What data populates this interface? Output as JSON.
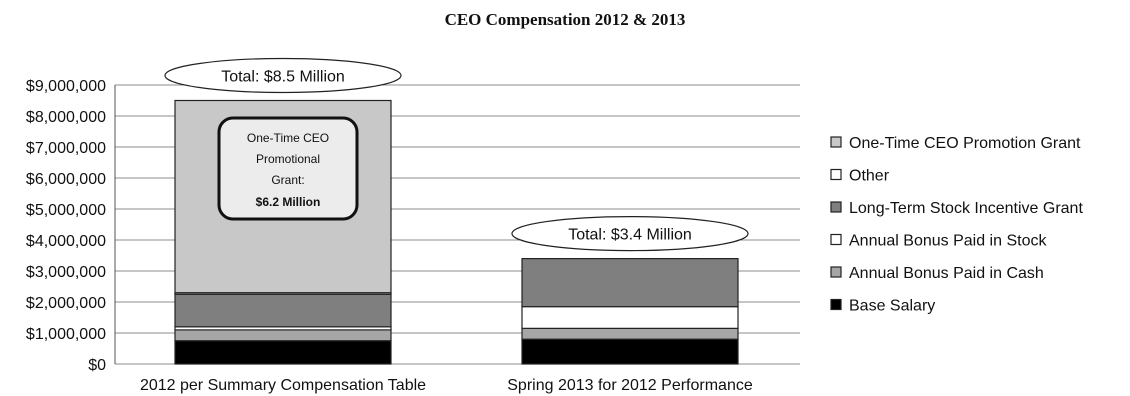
{
  "chart_data": {
    "type": "bar",
    "stacked": true,
    "title": "CEO Compensation 2012 & 2013",
    "xlabel": "",
    "ylabel": "",
    "ylim": [
      0,
      9000000
    ],
    "y_ticks": [
      0,
      1000000,
      2000000,
      3000000,
      4000000,
      5000000,
      6000000,
      7000000,
      8000000,
      9000000
    ],
    "y_tick_labels": [
      "$0",
      "$1,000,000",
      "$2,000,000",
      "$3,000,000",
      "$4,000,000",
      "$5,000,000",
      "$6,000,000",
      "$7,000,000",
      "$8,000,000",
      "$9,000,000"
    ],
    "grid": true,
    "legend_position": "right",
    "categories": [
      "2012 per Summary Compensation Table",
      "Spring 2013 for 2012 Performance"
    ],
    "series": [
      {
        "name": "Base Salary",
        "color": "#000000",
        "values": [
          750000,
          800000
        ]
      },
      {
        "name": "Annual Bonus Paid in Cash",
        "color": "#a6a6a6",
        "values": [
          350000,
          350000
        ]
      },
      {
        "name": "Annual Bonus Paid in Stock",
        "color": "#ffffff",
        "values": [
          100000,
          700000
        ]
      },
      {
        "name": "Long-Term Stock Incentive Grant",
        "color": "#7f7f7f",
        "values": [
          1050000,
          1550000
        ]
      },
      {
        "name": "Other",
        "color": "#ffffff",
        "values": [
          50000,
          0
        ]
      },
      {
        "name": "One-Time CEO Promotion Grant",
        "color": "#c8c8c8",
        "values": [
          6200000,
          0
        ]
      }
    ],
    "annotations": [
      {
        "text": "Total: $8.5 Million",
        "category_index": 0
      },
      {
        "text": "Total: $3.4 Million",
        "category_index": 1
      }
    ],
    "callout": {
      "lines": [
        "One-Time CEO",
        "Promotional",
        "Grant:"
      ],
      "bold_line": "$6.2 Million",
      "category_index": 0
    }
  }
}
